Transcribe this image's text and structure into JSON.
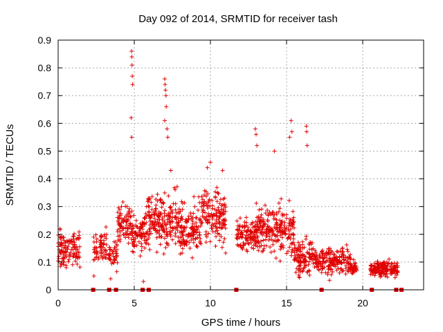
{
  "chart_data": {
    "type": "scatter",
    "title": "Day 092 of 2014, SRMTID for receiver tash",
    "xlabel": "GPS time / hours",
    "ylabel": "SRMTID / TECUs",
    "xlim": [
      0,
      24
    ],
    "ylim": [
      0,
      0.9
    ],
    "xticks": [
      0,
      5,
      10,
      15,
      20
    ],
    "yticks": [
      0,
      0.1,
      0.2,
      0.3,
      0.4,
      0.5,
      0.6,
      0.7,
      0.8,
      0.9
    ],
    "xtick_labels": [
      "0",
      "5",
      "10",
      "15",
      "20"
    ],
    "ytick_labels": [
      "0",
      "0.1",
      "0.2",
      "0.3",
      "0.4",
      "0.5",
      "0.6",
      "0.7",
      "0.8",
      "0.9"
    ],
    "grid": true,
    "marker": "+",
    "color": "#e00000",
    "segments": [
      {
        "start": 0.0,
        "end": 1.5,
        "base": 0.15,
        "spread": 0.06,
        "n": 120
      },
      {
        "start": 2.3,
        "end": 3.2,
        "base": 0.15,
        "spread": 0.06,
        "n": 60
      },
      {
        "start": 3.3,
        "end": 3.9,
        "base": 0.13,
        "spread": 0.05,
        "n": 40
      },
      {
        "start": 3.9,
        "end": 4.8,
        "base": 0.24,
        "spread": 0.07,
        "n": 80
      },
      {
        "start": 4.8,
        "end": 5.6,
        "base": 0.2,
        "spread": 0.06,
        "n": 70
      },
      {
        "start": 5.6,
        "end": 8.0,
        "base": 0.25,
        "spread": 0.09,
        "n": 220
      },
      {
        "start": 8.0,
        "end": 9.2,
        "base": 0.22,
        "spread": 0.09,
        "n": 110
      },
      {
        "start": 9.2,
        "end": 11.0,
        "base": 0.26,
        "spread": 0.1,
        "n": 160
      },
      {
        "start": 11.7,
        "end": 13.0,
        "base": 0.2,
        "spread": 0.06,
        "n": 110
      },
      {
        "start": 13.0,
        "end": 14.3,
        "base": 0.22,
        "spread": 0.08,
        "n": 120
      },
      {
        "start": 14.3,
        "end": 15.5,
        "base": 0.21,
        "spread": 0.08,
        "n": 110
      },
      {
        "start": 15.5,
        "end": 16.7,
        "base": 0.12,
        "spread": 0.06,
        "n": 110
      },
      {
        "start": 16.7,
        "end": 17.5,
        "base": 0.11,
        "spread": 0.04,
        "n": 60
      },
      {
        "start": 17.5,
        "end": 19.2,
        "base": 0.1,
        "spread": 0.05,
        "n": 140
      },
      {
        "start": 19.2,
        "end": 19.6,
        "base": 0.08,
        "spread": 0.02,
        "n": 40
      },
      {
        "start": 20.5,
        "end": 22.3,
        "base": 0.075,
        "spread": 0.025,
        "n": 180
      }
    ],
    "peaks": [
      {
        "x": 4.82,
        "y": 0.86
      },
      {
        "x": 4.84,
        "y": 0.84
      },
      {
        "x": 4.85,
        "y": 0.81
      },
      {
        "x": 4.87,
        "y": 0.77
      },
      {
        "x": 4.89,
        "y": 0.74
      },
      {
        "x": 4.8,
        "y": 0.62
      },
      {
        "x": 4.83,
        "y": 0.55
      },
      {
        "x": 7.0,
        "y": 0.76
      },
      {
        "x": 7.02,
        "y": 0.74
      },
      {
        "x": 7.05,
        "y": 0.72
      },
      {
        "x": 7.08,
        "y": 0.7
      },
      {
        "x": 7.1,
        "y": 0.66
      },
      {
        "x": 7.0,
        "y": 0.61
      },
      {
        "x": 7.15,
        "y": 0.58
      },
      {
        "x": 7.2,
        "y": 0.55
      },
      {
        "x": 12.95,
        "y": 0.58
      },
      {
        "x": 13.0,
        "y": 0.56
      },
      {
        "x": 13.05,
        "y": 0.52
      },
      {
        "x": 15.3,
        "y": 0.61
      },
      {
        "x": 15.35,
        "y": 0.57
      },
      {
        "x": 15.2,
        "y": 0.55
      },
      {
        "x": 16.3,
        "y": 0.59
      },
      {
        "x": 16.32,
        "y": 0.57
      },
      {
        "x": 16.35,
        "y": 0.52
      },
      {
        "x": 14.2,
        "y": 0.5
      },
      {
        "x": 10.0,
        "y": 0.46
      },
      {
        "x": 5.6,
        "y": 0.03
      },
      {
        "x": 3.45,
        "y": 0.04
      },
      {
        "x": 2.35,
        "y": 0.05
      },
      {
        "x": 7.4,
        "y": 0.43
      },
      {
        "x": 9.8,
        "y": 0.44
      },
      {
        "x": 10.8,
        "y": 0.43
      }
    ],
    "data_gap_markers": [
      2.3,
      3.35,
      3.8,
      5.55,
      5.95,
      11.7,
      17.3,
      20.6,
      22.2,
      22.55
    ]
  }
}
